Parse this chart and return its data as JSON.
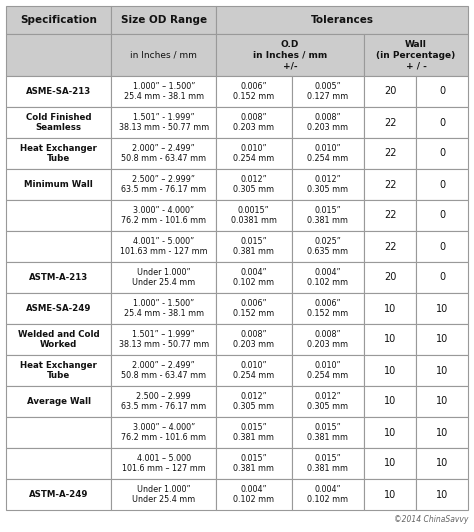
{
  "copyright": "©2014 ChinaSavvy",
  "rows": [
    {
      "spec": "ASME-SA-213",
      "size": "1.000” – 1.500”\n25.4 mm - 38.1 mm",
      "od_plus": "0.006”\n0.152 mm",
      "od_minus": "0.005”\n0.127 mm",
      "wall_plus": "20",
      "wall_minus": "0"
    },
    {
      "spec": "Cold Finished\nSeamless",
      "size": "1.501” - 1.999”\n38.13 mm - 50.77 mm",
      "od_plus": "0.008”\n0.203 mm",
      "od_minus": "0.008”\n0.203 mm",
      "wall_plus": "22",
      "wall_minus": "0"
    },
    {
      "spec": "Heat Exchanger\nTube",
      "size": "2.000” – 2.499”\n50.8 mm - 63.47 mm",
      "od_plus": "0.010”\n0.254 mm",
      "od_minus": "0.010”\n0.254 mm",
      "wall_plus": "22",
      "wall_minus": "0"
    },
    {
      "spec": "Minimum Wall",
      "size": "2.500” – 2.999”\n63.5 mm - 76.17 mm",
      "od_plus": "0.012”\n0.305 mm",
      "od_minus": "0.012”\n0.305 mm",
      "wall_plus": "22",
      "wall_minus": "0"
    },
    {
      "spec": "",
      "size": "3.000” - 4.000”\n76.2 mm - 101.6 mm",
      "od_plus": "0.0015”\n0.0381 mm",
      "od_minus": "0.015”\n0.381 mm",
      "wall_plus": "22",
      "wall_minus": "0"
    },
    {
      "spec": "",
      "size": "4.001” - 5.000”\n101.63 mm - 127 mm",
      "od_plus": "0.015”\n0.381 mm",
      "od_minus": "0.025”\n0.635 mm",
      "wall_plus": "22",
      "wall_minus": "0"
    },
    {
      "spec": "ASTM-A-213",
      "size": "Under 1.000”\nUnder 25.4 mm",
      "od_plus": "0.004”\n0.102 mm",
      "od_minus": "0.004”\n0.102 mm",
      "wall_plus": "20",
      "wall_minus": "0"
    },
    {
      "spec": "ASME-SA-249",
      "size": "1.000” - 1.500”\n25.4 mm - 38.1 mm",
      "od_plus": "0.006”\n0.152 mm",
      "od_minus": "0.006”\n0.152 mm",
      "wall_plus": "10",
      "wall_minus": "10"
    },
    {
      "spec": "Welded and Cold\nWorked",
      "size": "1.501” – 1.999”\n38.13 mm - 50.77 mm",
      "od_plus": "0.008”\n0.203 mm",
      "od_minus": "0.008”\n0.203 mm",
      "wall_plus": "10",
      "wall_minus": "10"
    },
    {
      "spec": "Heat Exchanger\nTube",
      "size": "2.000” – 2.499”\n50.8 mm - 63.47 mm",
      "od_plus": "0.010”\n0.254 mm",
      "od_minus": "0.010”\n0.254 mm",
      "wall_plus": "10",
      "wall_minus": "10"
    },
    {
      "spec": "Average Wall",
      "size": "2.500 – 2.999\n63.5 mm - 76.17 mm",
      "od_plus": "0.012”\n0.305 mm",
      "od_minus": "0.012”\n0.305 mm",
      "wall_plus": "10",
      "wall_minus": "10"
    },
    {
      "spec": "",
      "size": "3.000” – 4.000”\n76.2 mm - 101.6 mm",
      "od_plus": "0.015”\n0.381 mm",
      "od_minus": "0.015”\n0.381 mm",
      "wall_plus": "10",
      "wall_minus": "10"
    },
    {
      "spec": "",
      "size": "4.001 – 5.000\n101.6 mm – 127 mm",
      "od_plus": "0.015”\n0.381 mm",
      "od_minus": "0.015”\n0.381 mm",
      "wall_plus": "10",
      "wall_minus": "10"
    },
    {
      "spec": "ASTM-A-249",
      "size": "Under 1.000”\nUnder 25.4 mm",
      "od_plus": "0.004”\n0.102 mm",
      "od_minus": "0.004”\n0.102 mm",
      "wall_plus": "10",
      "wall_minus": "10"
    }
  ],
  "bg_color": "#ffffff",
  "header_bg": "#cccccc",
  "grid_color": "#999999",
  "cell_bg": "#ffffff"
}
